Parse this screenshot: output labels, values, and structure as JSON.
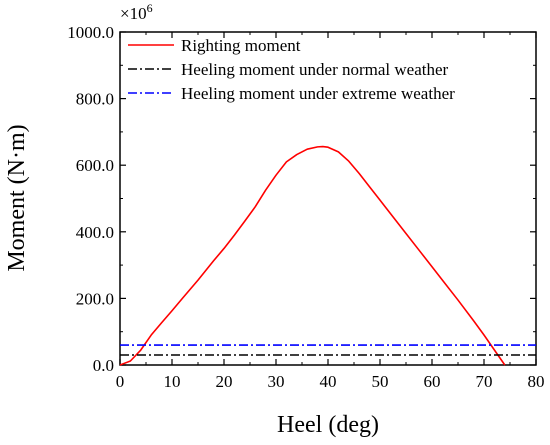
{
  "chart_data": {
    "type": "line",
    "xlabel": "Heel (deg)",
    "ylabel": "Moment (N·m)",
    "y_multiplier": {
      "base": "×10",
      "exp": "6"
    },
    "xlim": [
      0,
      80
    ],
    "ylim": [
      0,
      1000
    ],
    "x_ticks": [
      0,
      10,
      20,
      30,
      40,
      50,
      60,
      70,
      80
    ],
    "x_tick_labels": [
      "0",
      "10",
      "20",
      "30",
      "40",
      "50",
      "60",
      "70",
      "80"
    ],
    "y_ticks": [
      0,
      200,
      400,
      600,
      800,
      1000
    ],
    "y_tick_labels": [
      "0.0",
      "200.0",
      "400.0",
      "600.0",
      "800.0",
      "1000.0"
    ],
    "grid": false,
    "legend_position": "top-left",
    "series": [
      {
        "name": "Righting moment",
        "color": "#ff0000",
        "style": "solid",
        "x": [
          0,
          2,
          4,
          6,
          8,
          10,
          12,
          15,
          18,
          20,
          22,
          24,
          26,
          28,
          30,
          32,
          34,
          36,
          38,
          39,
          40,
          42,
          44,
          46,
          48,
          50,
          52,
          55,
          58,
          60,
          62,
          65,
          68,
          70,
          72,
          74
        ],
        "y": [
          0,
          12,
          45,
          90,
          127,
          163,
          200,
          255,
          313,
          350,
          390,
          432,
          475,
          525,
          570,
          610,
          632,
          648,
          655,
          656,
          654,
          640,
          612,
          575,
          535,
          495,
          455,
          395,
          335,
          295,
          255,
          195,
          133,
          90,
          45,
          0
        ]
      },
      {
        "name": "Heeling moment under normal weather",
        "color": "#000000",
        "style": "dashdot",
        "x": [
          0,
          80
        ],
        "y": [
          30,
          30
        ]
      },
      {
        "name": "Heeling moment under extreme weather",
        "color": "#0000ff",
        "style": "dashdot",
        "x": [
          0,
          80
        ],
        "y": [
          60,
          60
        ]
      }
    ]
  }
}
